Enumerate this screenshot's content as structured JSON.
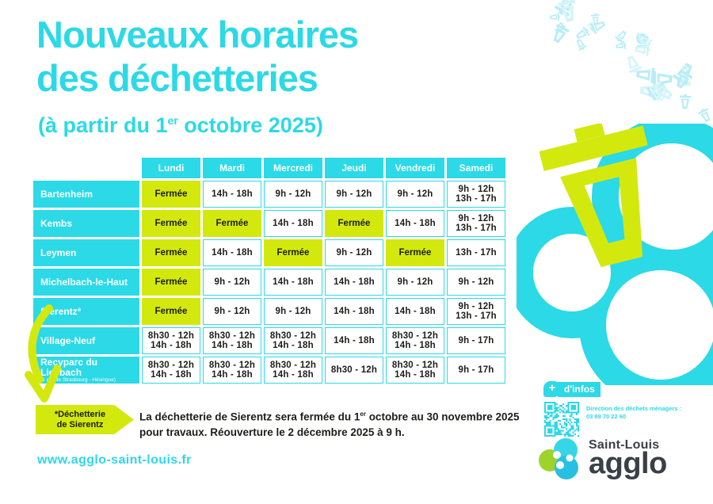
{
  "title": {
    "line1": "Nouveaux horaires",
    "line2": "des déchetteries",
    "subtitle_pre": "(à partir du 1",
    "subtitle_sup": "er",
    "subtitle_post": " octobre 2025)"
  },
  "table": {
    "day_headers": [
      "Lundi",
      "Mardi",
      "Mercredi",
      "Jeudi",
      "Vendredi",
      "Samedi"
    ],
    "closed_label": "Fermée",
    "rows": [
      {
        "name": "Bartenheim",
        "sub": "",
        "cells": [
          "Fermée",
          "14h - 18h",
          "9h - 12h",
          "9h - 12h",
          "9h - 12h",
          "9h - 12h|13h - 17h"
        ]
      },
      {
        "name": "Kembs",
        "sub": "",
        "cells": [
          "Fermée",
          "Fermée",
          "14h - 18h",
          "Fermée",
          "14h - 18h",
          "9h - 12h|13h - 17h"
        ]
      },
      {
        "name": "Leymen",
        "sub": "",
        "cells": [
          "Fermée",
          "14h - 18h",
          "Fermée",
          "9h - 12h",
          "Fermée",
          "13h - 17h"
        ]
      },
      {
        "name": "Michelbach-le-Haut",
        "sub": "",
        "cells": [
          "Fermée",
          "9h - 12h",
          "14h - 18h",
          "14h - 18h",
          "9h - 12h",
          "9h - 12h"
        ]
      },
      {
        "name": "Sierentz*",
        "sub": "",
        "cells": [
          "Fermée",
          "9h - 12h",
          "9h - 12h",
          "14h - 18h",
          "14h - 18h",
          "9h - 12h|13h - 17h"
        ]
      },
      {
        "name": "Village-Neuf",
        "sub": "",
        "cells": [
          "8h30 - 12h|14h - 18h",
          "8h30 - 12h|14h - 18h",
          "8h30 - 12h|14h - 18h",
          "14h - 18h",
          "8h30 - 12h|14h - 18h",
          "9h - 17h"
        ]
      },
      {
        "name": "Recyparc du Liesbach",
        "sub": "(1 rue de Strasbourg - Hésingue)",
        "cells": [
          "8h30 - 12h|14h - 18h",
          "8h30 - 12h|14h - 18h",
          "8h30 - 12h|14h - 18h",
          "8h30 - 12h",
          "8h30 - 12h|14h - 18h",
          "9h - 17h"
        ]
      }
    ]
  },
  "note": {
    "tag_line1": "*Déchetterie",
    "tag_line2": "de Sierentz",
    "line1_pre": "La déchetterie de Sierentz sera fermée du 1",
    "line1_sup": "er",
    "line1_post": " octobre au 30 novembre 2025",
    "line2": "pour travaux. Réouverture le 2 décembre 2025 à 9 h."
  },
  "footer": {
    "url": "www.agglo-saint-louis.fr"
  },
  "infos": {
    "plus": "+",
    "badge": "d'infos",
    "contact_label": "Direction des déchets ménagers :",
    "phone": "03 89 70 22 60"
  },
  "brand": {
    "top": "Saint-Louis",
    "bottom": "agglo"
  },
  "icons": {
    "scatter": "trash-icon",
    "hero": "trash-bin-icon",
    "arrow": "curved-arrow-icon",
    "qr": "qr-code",
    "plus": "plus-icon",
    "logo": "agglo-logo-icon"
  },
  "colors": {
    "cyan": "#2cd9e6",
    "pale_cyan": "#b9edf6",
    "pale_cyan_light": "#d4f5fa",
    "green": "#d3e90e",
    "dark_text": "#1d1d1b",
    "charcoal": "#3a4047",
    "logo_green": "#9ed32b",
    "logo_cyan": "#35d7e6",
    "logo_blue": "#28c0e2"
  }
}
